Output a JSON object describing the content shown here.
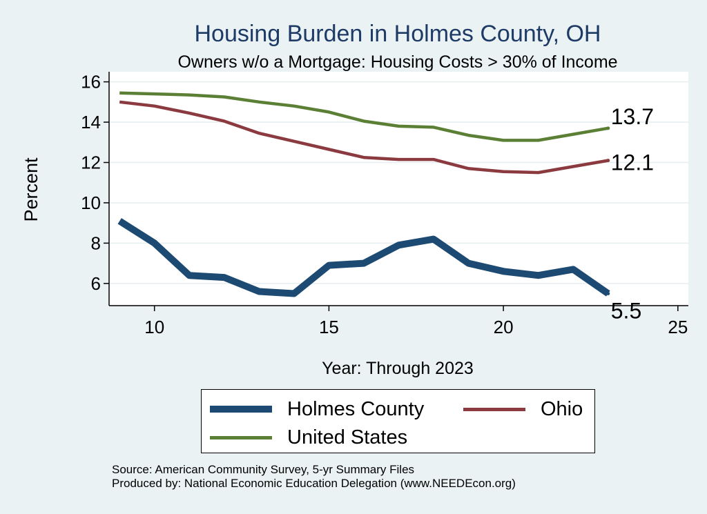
{
  "chart_data": {
    "type": "line",
    "title": "Housing Burden in Holmes County, OH",
    "subtitle": "Owners w/o a Mortgage: Housing Costs > 30% of Income",
    "xlabel": "Year: Through 2023",
    "ylabel": "Percent",
    "xlim": [
      8.7,
      25.3
    ],
    "ylim": [
      4.9,
      16.5
    ],
    "xticks": [
      10,
      15,
      20,
      25
    ],
    "yticks": [
      6,
      8,
      10,
      12,
      14,
      16
    ],
    "grid": true,
    "legend_position": "bottom",
    "x": [
      9,
      10,
      11,
      12,
      13,
      14,
      15,
      16,
      17,
      18,
      19,
      20,
      21,
      22,
      23
    ],
    "series": [
      {
        "name": "Holmes County",
        "color": "#1c4a72",
        "values": [
          9.1,
          8.0,
          6.4,
          6.3,
          5.6,
          5.5,
          6.9,
          7.0,
          7.9,
          8.2,
          7.0,
          6.6,
          6.4,
          6.7,
          5.5
        ],
        "end_label": "5.5"
      },
      {
        "name": "Ohio",
        "color": "#8b3a3f",
        "values": [
          15.0,
          14.8,
          14.45,
          14.05,
          13.45,
          13.05,
          12.65,
          12.25,
          12.15,
          12.15,
          11.7,
          11.55,
          11.5,
          11.8,
          12.1
        ],
        "end_label": "12.1"
      },
      {
        "name": "United States",
        "color": "#5b7f34",
        "values": [
          15.45,
          15.4,
          15.35,
          15.25,
          15.0,
          14.8,
          14.5,
          14.05,
          13.8,
          13.75,
          13.35,
          13.1,
          13.1,
          13.4,
          13.7
        ],
        "end_label": "13.7"
      }
    ]
  },
  "source_line": "Source: American Community Survey, 5-yr Summary Files",
  "produced_line": "Produced by: National Economic Education Delegation (www.NEEDEcon.org)"
}
